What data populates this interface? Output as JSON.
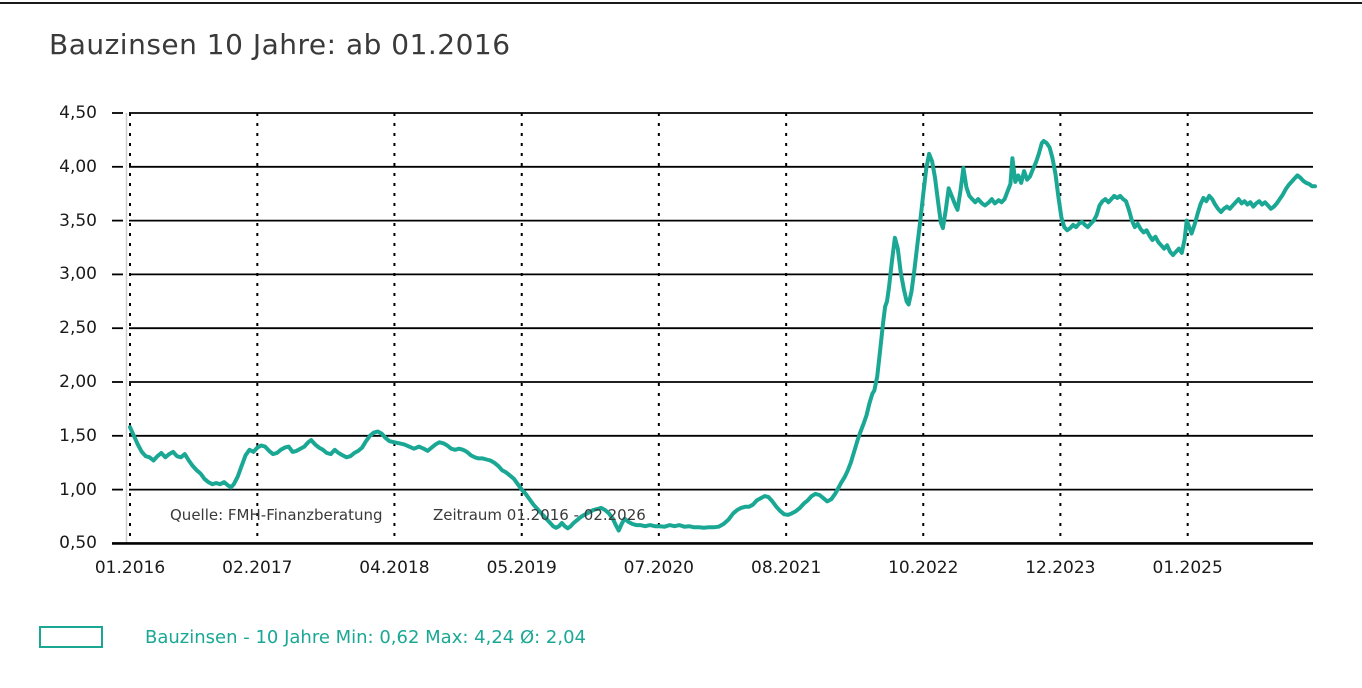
{
  "page": {
    "title": "Bauzinsen 10 Jahre: ab 01.2016"
  },
  "legend": {
    "label": "Bauzinsen - 10 Jahre Min: 0,62 Max: 4,24 Ø: 2,04",
    "swatch_color": "#1AA895"
  },
  "chart_data": {
    "type": "line",
    "title": "Bauzinsen 10 Jahre: ab 01.2016",
    "series_name": "Bauzinsen - 10 Jahre",
    "unit": "percent",
    "line_color": "#1AA895",
    "grid": true,
    "legend_position": "bottom-left",
    "stats": {
      "min": "0,62",
      "max": "4,24",
      "avg": "2,04"
    },
    "annotations": [
      {
        "text": "Quelle: FMH-Finanzberatung"
      },
      {
        "text": "Zeitraum 01.2016 - 02.2026"
      }
    ],
    "y_axis": {
      "tick_labels": [
        "4,50",
        "4,00",
        "3,50",
        "3,00",
        "2,50",
        "2,00",
        "1,50",
        "1,00",
        "0,50"
      ],
      "tick_values": [
        4.5,
        4.0,
        3.5,
        3.0,
        2.5,
        2.0,
        1.5,
        1.0,
        0.5
      ],
      "range": [
        0.5,
        4.5
      ]
    },
    "x_axis": {
      "tick_labels": [
        "01.2016",
        "02.2017",
        "04.2018",
        "05.2019",
        "07.2020",
        "08.2021",
        "10.2022",
        "12.2023",
        "01.2025"
      ],
      "tick_months": [
        0,
        13,
        27,
        40,
        54,
        67,
        81,
        95,
        108
      ],
      "range_months": [
        0,
        121
      ],
      "start": "01.2016",
      "end": "02.2026"
    },
    "points": [
      [
        0,
        1.58
      ],
      [
        0.4,
        1.5
      ],
      [
        0.8,
        1.42
      ],
      [
        1.2,
        1.35
      ],
      [
        1.6,
        1.31
      ],
      [
        2,
        1.3
      ],
      [
        2.4,
        1.27
      ],
      [
        2.8,
        1.31
      ],
      [
        3.2,
        1.34
      ],
      [
        3.6,
        1.3
      ],
      [
        4,
        1.33
      ],
      [
        4.4,
        1.35
      ],
      [
        4.8,
        1.31
      ],
      [
        5.2,
        1.3
      ],
      [
        5.6,
        1.33
      ],
      [
        6,
        1.27
      ],
      [
        6.4,
        1.22
      ],
      [
        6.8,
        1.18
      ],
      [
        7.2,
        1.15
      ],
      [
        7.6,
        1.1
      ],
      [
        8,
        1.07
      ],
      [
        8.4,
        1.05
      ],
      [
        8.8,
        1.06
      ],
      [
        9.2,
        1.05
      ],
      [
        9.6,
        1.07
      ],
      [
        10,
        1.04
      ],
      [
        10.3,
        1.02
      ],
      [
        10.6,
        1.05
      ],
      [
        11,
        1.12
      ],
      [
        11.4,
        1.22
      ],
      [
        11.8,
        1.32
      ],
      [
        12.2,
        1.37
      ],
      [
        12.6,
        1.35
      ],
      [
        13,
        1.39
      ],
      [
        13.4,
        1.41
      ],
      [
        13.8,
        1.4
      ],
      [
        14.2,
        1.36
      ],
      [
        14.6,
        1.33
      ],
      [
        15,
        1.34
      ],
      [
        15.4,
        1.37
      ],
      [
        15.8,
        1.39
      ],
      [
        16.2,
        1.4
      ],
      [
        16.6,
        1.35
      ],
      [
        17,
        1.36
      ],
      [
        17.4,
        1.38
      ],
      [
        17.8,
        1.4
      ],
      [
        18.2,
        1.44
      ],
      [
        18.5,
        1.46
      ],
      [
        18.9,
        1.42
      ],
      [
        19.3,
        1.39
      ],
      [
        19.7,
        1.37
      ],
      [
        20.1,
        1.34
      ],
      [
        20.5,
        1.33
      ],
      [
        20.9,
        1.37
      ],
      [
        21.3,
        1.34
      ],
      [
        21.7,
        1.32
      ],
      [
        22.1,
        1.3
      ],
      [
        22.5,
        1.31
      ],
      [
        22.9,
        1.34
      ],
      [
        23.3,
        1.36
      ],
      [
        23.7,
        1.39
      ],
      [
        24.1,
        1.45
      ],
      [
        24.5,
        1.5
      ],
      [
        24.9,
        1.53
      ],
      [
        25.3,
        1.54
      ],
      [
        25.7,
        1.52
      ],
      [
        26.1,
        1.48
      ],
      [
        26.5,
        1.45
      ],
      [
        27,
        1.44
      ],
      [
        27.5,
        1.43
      ],
      [
        28,
        1.42
      ],
      [
        28.5,
        1.4
      ],
      [
        29,
        1.38
      ],
      [
        29.5,
        1.4
      ],
      [
        30,
        1.38
      ],
      [
        30.4,
        1.36
      ],
      [
        30.8,
        1.39
      ],
      [
        31.2,
        1.42
      ],
      [
        31.6,
        1.44
      ],
      [
        32,
        1.43
      ],
      [
        32.4,
        1.41
      ],
      [
        32.8,
        1.38
      ],
      [
        33.2,
        1.37
      ],
      [
        33.6,
        1.38
      ],
      [
        34,
        1.37
      ],
      [
        34.4,
        1.35
      ],
      [
        34.8,
        1.32
      ],
      [
        35.2,
        1.3
      ],
      [
        35.6,
        1.29
      ],
      [
        36,
        1.29
      ],
      [
        36.4,
        1.28
      ],
      [
        36.8,
        1.27
      ],
      [
        37.2,
        1.25
      ],
      [
        37.6,
        1.22
      ],
      [
        38,
        1.18
      ],
      [
        38.4,
        1.16
      ],
      [
        38.8,
        1.13
      ],
      [
        39.2,
        1.1
      ],
      [
        39.6,
        1.05
      ],
      [
        40,
        1.0
      ],
      [
        40.4,
        0.96
      ],
      [
        40.8,
        0.91
      ],
      [
        41.2,
        0.86
      ],
      [
        41.6,
        0.82
      ],
      [
        42,
        0.78
      ],
      [
        42.4,
        0.74
      ],
      [
        42.8,
        0.7
      ],
      [
        43.2,
        0.66
      ],
      [
        43.5,
        0.645
      ],
      [
        43.8,
        0.66
      ],
      [
        44.1,
        0.69
      ],
      [
        44.4,
        0.66
      ],
      [
        44.7,
        0.64
      ],
      [
        45,
        0.66
      ],
      [
        45.3,
        0.69
      ],
      [
        45.7,
        0.72
      ],
      [
        46.1,
        0.75
      ],
      [
        46.5,
        0.77
      ],
      [
        46.9,
        0.79
      ],
      [
        47.3,
        0.81
      ],
      [
        47.7,
        0.82
      ],
      [
        48.1,
        0.83
      ],
      [
        48.5,
        0.81
      ],
      [
        48.9,
        0.78
      ],
      [
        49.3,
        0.73
      ],
      [
        49.6,
        0.67
      ],
      [
        49.9,
        0.62
      ],
      [
        50.2,
        0.68
      ],
      [
        50.5,
        0.73
      ],
      [
        50.9,
        0.7
      ],
      [
        51.3,
        0.68
      ],
      [
        51.7,
        0.67
      ],
      [
        52.1,
        0.67
      ],
      [
        52.6,
        0.66
      ],
      [
        53.1,
        0.67
      ],
      [
        53.6,
        0.66
      ],
      [
        54.1,
        0.66
      ],
      [
        54.6,
        0.655
      ],
      [
        55.1,
        0.67
      ],
      [
        55.6,
        0.66
      ],
      [
        56.1,
        0.67
      ],
      [
        56.6,
        0.655
      ],
      [
        57.1,
        0.66
      ],
      [
        57.6,
        0.65
      ],
      [
        58.1,
        0.65
      ],
      [
        58.6,
        0.645
      ],
      [
        59.1,
        0.65
      ],
      [
        59.6,
        0.65
      ],
      [
        60.1,
        0.655
      ],
      [
        60.6,
        0.68
      ],
      [
        61.1,
        0.72
      ],
      [
        61.6,
        0.78
      ],
      [
        62,
        0.81
      ],
      [
        62.4,
        0.83
      ],
      [
        62.8,
        0.84
      ],
      [
        63.2,
        0.84
      ],
      [
        63.6,
        0.86
      ],
      [
        64,
        0.9
      ],
      [
        64.4,
        0.92
      ],
      [
        64.8,
        0.94
      ],
      [
        65.2,
        0.93
      ],
      [
        65.6,
        0.89
      ],
      [
        66,
        0.84
      ],
      [
        66.4,
        0.8
      ],
      [
        66.8,
        0.77
      ],
      [
        67.2,
        0.765
      ],
      [
        67.6,
        0.78
      ],
      [
        68,
        0.8
      ],
      [
        68.4,
        0.83
      ],
      [
        68.8,
        0.87
      ],
      [
        69.2,
        0.9
      ],
      [
        69.6,
        0.94
      ],
      [
        70,
        0.96
      ],
      [
        70.4,
        0.95
      ],
      [
        70.8,
        0.92
      ],
      [
        71.2,
        0.89
      ],
      [
        71.6,
        0.91
      ],
      [
        72,
        0.96
      ],
      [
        72.3,
        1.01
      ],
      [
        72.6,
        1.06
      ],
      [
        73,
        1.12
      ],
      [
        73.3,
        1.18
      ],
      [
        73.6,
        1.25
      ],
      [
        74,
        1.37
      ],
      [
        74.3,
        1.46
      ],
      [
        74.6,
        1.54
      ],
      [
        74.9,
        1.61
      ],
      [
        75.2,
        1.69
      ],
      [
        75.5,
        1.8
      ],
      [
        75.8,
        1.89
      ],
      [
        76,
        1.92
      ],
      [
        76.3,
        2.05
      ],
      [
        76.6,
        2.3
      ],
      [
        76.9,
        2.55
      ],
      [
        77.1,
        2.7
      ],
      [
        77.3,
        2.75
      ],
      [
        77.5,
        2.88
      ],
      [
        77.8,
        3.12
      ],
      [
        78.1,
        3.34
      ],
      [
        78.4,
        3.24
      ],
      [
        78.7,
        3.02
      ],
      [
        79,
        2.87
      ],
      [
        79.3,
        2.75
      ],
      [
        79.5,
        2.72
      ],
      [
        79.8,
        2.84
      ],
      [
        80.1,
        3.05
      ],
      [
        80.4,
        3.28
      ],
      [
        80.7,
        3.5
      ],
      [
        81,
        3.75
      ],
      [
        81.3,
        3.98
      ],
      [
        81.6,
        4.12
      ],
      [
        81.9,
        4.05
      ],
      [
        82.2,
        3.9
      ],
      [
        82.5,
        3.68
      ],
      [
        82.8,
        3.48
      ],
      [
        83,
        3.43
      ],
      [
        83.3,
        3.6
      ],
      [
        83.6,
        3.8
      ],
      [
        83.9,
        3.73
      ],
      [
        84.2,
        3.66
      ],
      [
        84.5,
        3.6
      ],
      [
        84.8,
        3.78
      ],
      [
        85.1,
        3.99
      ],
      [
        85.4,
        3.81
      ],
      [
        85.7,
        3.73
      ],
      [
        86,
        3.7
      ],
      [
        86.3,
        3.67
      ],
      [
        86.6,
        3.7
      ],
      [
        87,
        3.66
      ],
      [
        87.3,
        3.64
      ],
      [
        87.7,
        3.67
      ],
      [
        88,
        3.7
      ],
      [
        88.3,
        3.66
      ],
      [
        88.7,
        3.69
      ],
      [
        89,
        3.67
      ],
      [
        89.3,
        3.7
      ],
      [
        89.6,
        3.77
      ],
      [
        89.9,
        3.84
      ],
      [
        90.1,
        4.08
      ],
      [
        90.4,
        3.86
      ],
      [
        90.7,
        3.92
      ],
      [
        91,
        3.85
      ],
      [
        91.3,
        3.96
      ],
      [
        91.6,
        3.88
      ],
      [
        91.9,
        3.91
      ],
      [
        92.2,
        3.98
      ],
      [
        92.5,
        4.04
      ],
      [
        92.8,
        4.12
      ],
      [
        93.1,
        4.22
      ],
      [
        93.3,
        4.24
      ],
      [
        93.6,
        4.22
      ],
      [
        93.9,
        4.18
      ],
      [
        94.2,
        4.08
      ],
      [
        94.5,
        3.93
      ],
      [
        94.8,
        3.72
      ],
      [
        95.1,
        3.53
      ],
      [
        95.4,
        3.44
      ],
      [
        95.7,
        3.41
      ],
      [
        96,
        3.43
      ],
      [
        96.3,
        3.46
      ],
      [
        96.6,
        3.44
      ],
      [
        96.9,
        3.47
      ],
      [
        97.2,
        3.49
      ],
      [
        97.5,
        3.46
      ],
      [
        97.8,
        3.44
      ],
      [
        98.1,
        3.47
      ],
      [
        98.4,
        3.5
      ],
      [
        98.7,
        3.55
      ],
      [
        99,
        3.64
      ],
      [
        99.3,
        3.68
      ],
      [
        99.6,
        3.7
      ],
      [
        99.9,
        3.67
      ],
      [
        100.2,
        3.7
      ],
      [
        100.5,
        3.73
      ],
      [
        100.8,
        3.71
      ],
      [
        101.1,
        3.73
      ],
      [
        101.4,
        3.7
      ],
      [
        101.7,
        3.68
      ],
      [
        102,
        3.6
      ],
      [
        102.3,
        3.5
      ],
      [
        102.6,
        3.44
      ],
      [
        102.9,
        3.47
      ],
      [
        103.2,
        3.42
      ],
      [
        103.5,
        3.39
      ],
      [
        103.8,
        3.41
      ],
      [
        104.1,
        3.36
      ],
      [
        104.4,
        3.32
      ],
      [
        104.7,
        3.35
      ],
      [
        105,
        3.3
      ],
      [
        105.3,
        3.27
      ],
      [
        105.6,
        3.24
      ],
      [
        105.9,
        3.27
      ],
      [
        106.2,
        3.21
      ],
      [
        106.5,
        3.18
      ],
      [
        106.8,
        3.21
      ],
      [
        107.1,
        3.24
      ],
      [
        107.4,
        3.2
      ],
      [
        107.7,
        3.33
      ],
      [
        107.9,
        3.5
      ],
      [
        108.2,
        3.43
      ],
      [
        108.4,
        3.38
      ],
      [
        108.7,
        3.46
      ],
      [
        109,
        3.56
      ],
      [
        109.3,
        3.65
      ],
      [
        109.6,
        3.71
      ],
      [
        109.9,
        3.68
      ],
      [
        110.2,
        3.73
      ],
      [
        110.5,
        3.7
      ],
      [
        110.8,
        3.65
      ],
      [
        111.1,
        3.61
      ],
      [
        111.4,
        3.58
      ],
      [
        111.7,
        3.61
      ],
      [
        112,
        3.63
      ],
      [
        112.3,
        3.61
      ],
      [
        112.6,
        3.64
      ],
      [
        112.9,
        3.67
      ],
      [
        113.2,
        3.7
      ],
      [
        113.5,
        3.66
      ],
      [
        113.8,
        3.68
      ],
      [
        114.1,
        3.65
      ],
      [
        114.4,
        3.67
      ],
      [
        114.7,
        3.63
      ],
      [
        115,
        3.66
      ],
      [
        115.3,
        3.68
      ],
      [
        115.6,
        3.65
      ],
      [
        115.9,
        3.67
      ],
      [
        116.2,
        3.64
      ],
      [
        116.5,
        3.61
      ],
      [
        116.8,
        3.63
      ],
      [
        117.1,
        3.66
      ],
      [
        117.4,
        3.7
      ],
      [
        117.7,
        3.74
      ],
      [
        118,
        3.79
      ],
      [
        118.3,
        3.83
      ],
      [
        118.6,
        3.86
      ],
      [
        118.9,
        3.89
      ],
      [
        119.2,
        3.92
      ],
      [
        119.5,
        3.9
      ],
      [
        119.8,
        3.87
      ],
      [
        120.1,
        3.85
      ],
      [
        120.4,
        3.84
      ],
      [
        120.7,
        3.82
      ],
      [
        121,
        3.82
      ]
    ]
  }
}
